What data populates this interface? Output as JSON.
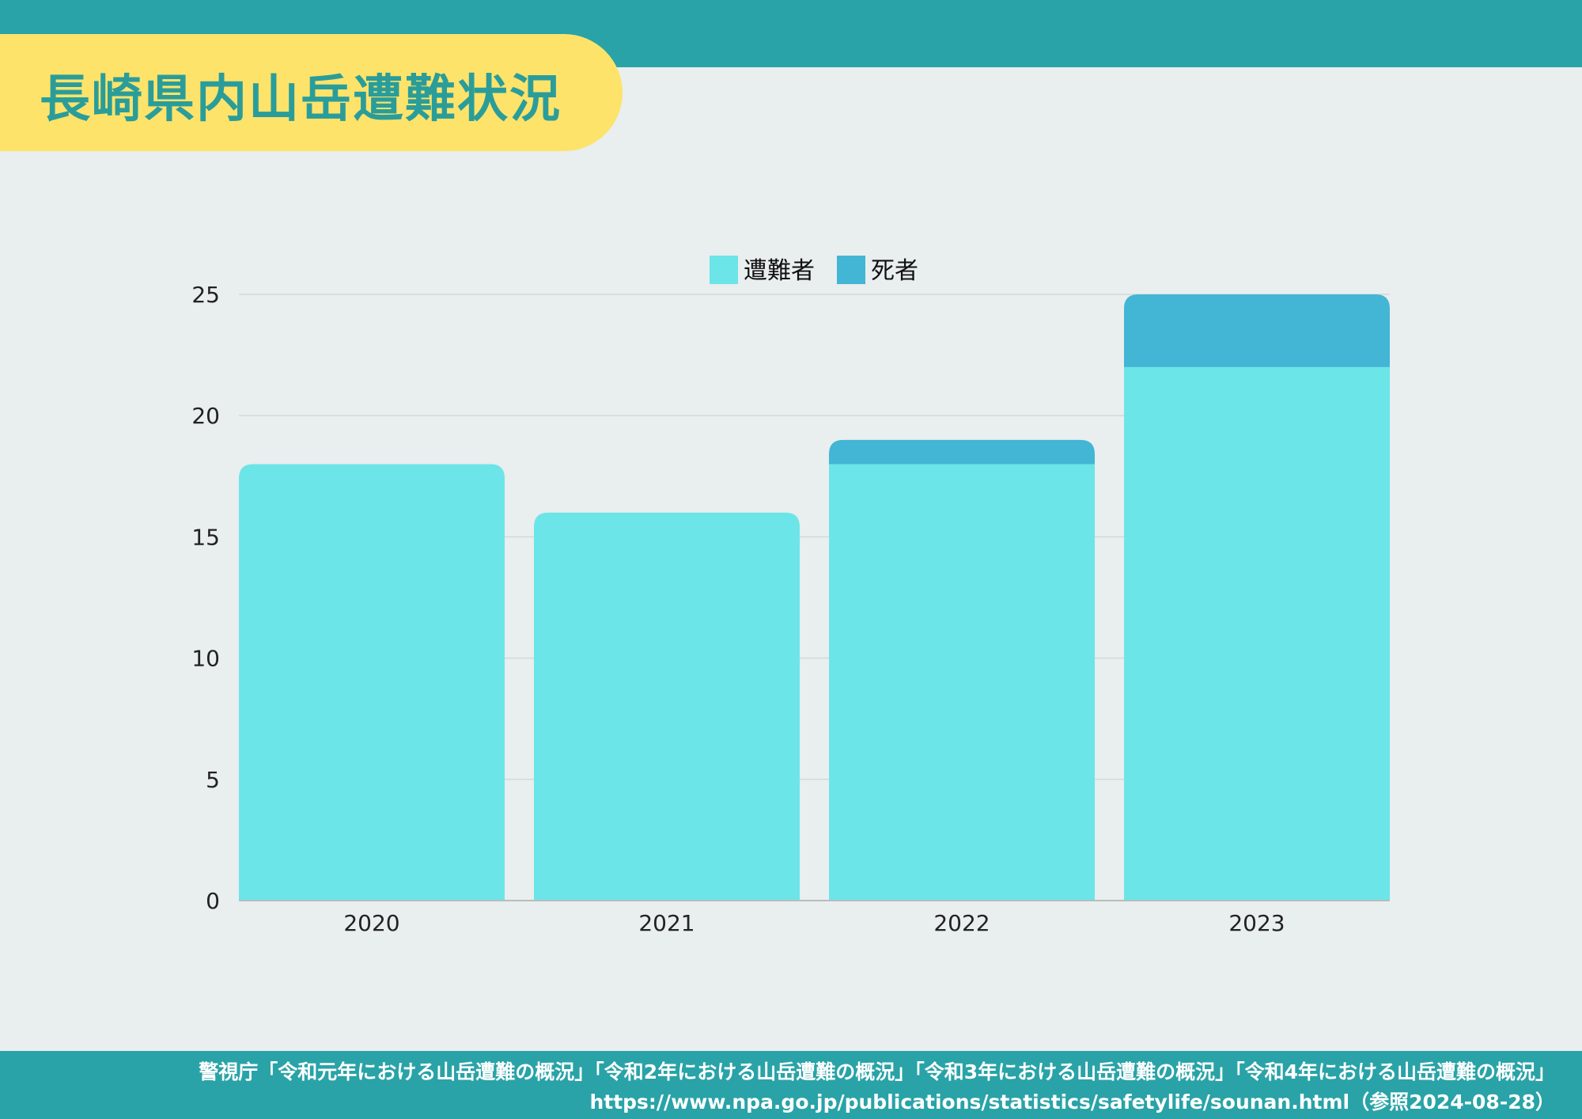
{
  "title": "長崎県内山岳遭難状況",
  "footer": {
    "source_line": "警視庁「令和元年における山岳遭難の概況」「令和2年における山岳遭難の概況」「令和3年における山岳遭難の概況」「令和4年における山岳遭難の概況」",
    "url_line": "https://www.npa.go.jp/publications/statistics/safetylife/sounan.html（参照2024-08-28）"
  },
  "chart_data": {
    "type": "bar",
    "stacked": true,
    "categories": [
      "2020",
      "2021",
      "2022",
      "2023"
    ],
    "series": [
      {
        "name": "遭難者",
        "values": [
          18,
          16,
          18,
          22
        ],
        "color": "#6ce5e8"
      },
      {
        "name": "死者",
        "values": [
          0,
          0,
          1,
          3
        ],
        "color": "#42b6d4"
      }
    ],
    "yticks": [
      0,
      5,
      10,
      15,
      20,
      25
    ],
    "ylim": [
      0,
      25
    ],
    "grid": true,
    "legend": "top-center",
    "colors": {
      "gridline": "#d3d8d9",
      "axis": "#b8bcbd"
    }
  }
}
